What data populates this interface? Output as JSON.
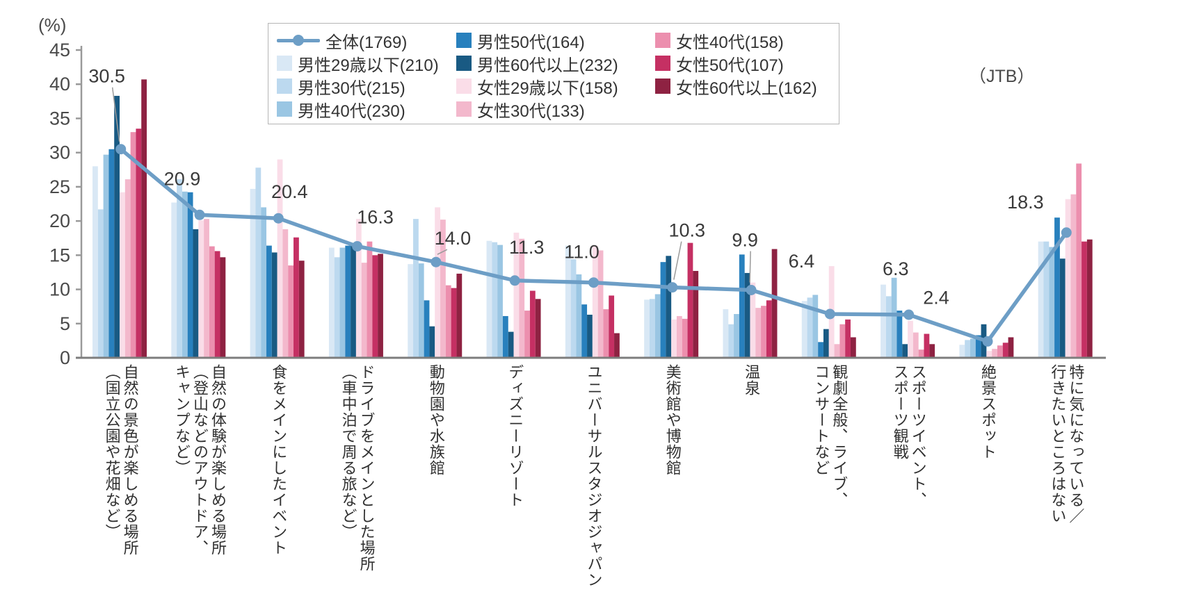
{
  "ui": {
    "percent_label": "(%)",
    "source_label": "（JTB）"
  },
  "chart_data": {
    "type": "bar+line",
    "title": "",
    "xlabel": "",
    "ylabel": "(%)",
    "ylim": [
      0,
      45
    ],
    "yticks": [
      0,
      5,
      10,
      15,
      20,
      25,
      30,
      35,
      40,
      45
    ],
    "grid": false,
    "legend_position": "top",
    "categories": [
      {
        "lines": [
          "自然の景色が楽しめる場所",
          "（国立公園や花畑など）"
        ]
      },
      {
        "lines": [
          "自然の体験が楽しめる場所",
          "（登山などのアウトドア、",
          "キャンプなど）"
        ]
      },
      {
        "lines": [
          "食をメインにしたイベント"
        ]
      },
      {
        "lines": [
          "ドライブをメインとした場所",
          "（車中泊で周る旅など）"
        ]
      },
      {
        "lines": [
          "動物園や水族館"
        ]
      },
      {
        "lines": [
          "ディズニーリゾート"
        ]
      },
      {
        "lines": [
          "ユニバーサルスタジオジャパン"
        ]
      },
      {
        "lines": [
          "美術館や博物館"
        ]
      },
      {
        "lines": [
          "温泉"
        ]
      },
      {
        "lines": [
          "観劇全般、ライブ、",
          "コンサートなど"
        ]
      },
      {
        "lines": [
          "スポーツイベント、",
          "スポーツ観戦"
        ]
      },
      {
        "lines": [
          "絶景スポット"
        ]
      },
      {
        "lines": [
          "特に気になっている／",
          "行きたいところはない"
        ]
      }
    ],
    "line_series": {
      "name": "全体(1769)",
      "color": "#6d9ec6",
      "values": [
        30.5,
        20.9,
        20.4,
        16.3,
        14.0,
        11.3,
        11.0,
        10.3,
        9.9,
        6.4,
        6.3,
        2.4,
        18.3
      ]
    },
    "bar_series": [
      {
        "name": "男性29歳以下(210)",
        "color": "#d9e8f5",
        "values": [
          28.0,
          22.7,
          24.7,
          16.1,
          13.7,
          17.1,
          16.4,
          8.5,
          7.1,
          8.3,
          10.7,
          1.9,
          17.0
        ]
      },
      {
        "name": "男性30代(215)",
        "color": "#bcd9ef",
        "values": [
          21.7,
          26.1,
          27.8,
          14.7,
          20.3,
          16.9,
          14.4,
          8.6,
          4.9,
          8.8,
          9.0,
          2.6,
          17.0
        ]
      },
      {
        "name": "男性40代(230)",
        "color": "#9ac6e3",
        "values": [
          29.7,
          24.3,
          22.0,
          16.1,
          13.8,
          16.5,
          12.2,
          9.3,
          6.4,
          9.2,
          11.7,
          2.8,
          16.2
        ]
      },
      {
        "name": "男性50代(164)",
        "color": "#2880bd",
        "values": [
          30.5,
          24.2,
          16.4,
          16.4,
          8.4,
          6.1,
          7.8,
          14.0,
          15.1,
          2.3,
          6.9,
          3.3,
          20.5
        ]
      },
      {
        "name": "男性60代以上(232)",
        "color": "#195a83",
        "values": [
          38.3,
          18.8,
          15.4,
          16.6,
          4.6,
          3.8,
          6.3,
          14.9,
          12.4,
          4.2,
          2.0,
          4.9,
          14.5
        ]
      },
      {
        "name": "女性29歳以下(158)",
        "color": "#fadde8",
        "values": [
          24.2,
          20.1,
          29.0,
          20.3,
          22.0,
          18.3,
          16.4,
          5.6,
          11.0,
          13.4,
          5.4,
          1.0,
          23.2
        ]
      },
      {
        "name": "女性30代(133)",
        "color": "#f3b8cc",
        "values": [
          26.1,
          20.3,
          18.8,
          13.9,
          20.2,
          17.4,
          15.7,
          6.1,
          7.3,
          2.0,
          3.7,
          1.3,
          23.9
        ]
      },
      {
        "name": "女性40代(158)",
        "color": "#ec8fae",
        "values": [
          33.0,
          16.3,
          13.5,
          17.0,
          10.6,
          6.9,
          7.1,
          5.7,
          7.6,
          4.9,
          1.2,
          1.8,
          28.4
        ]
      },
      {
        "name": "女性50代(107)",
        "color": "#c53063",
        "values": [
          33.5,
          15.6,
          17.6,
          15.0,
          10.2,
          9.8,
          9.1,
          16.8,
          8.4,
          5.6,
          3.5,
          2.2,
          17.0
        ]
      },
      {
        "name": "女性60代以上(162)",
        "color": "#8e2242",
        "values": [
          40.7,
          14.7,
          14.2,
          15.2,
          12.3,
          8.6,
          3.6,
          12.7,
          15.9,
          3.0,
          2.0,
          3.0,
          17.3
        ]
      }
    ]
  }
}
